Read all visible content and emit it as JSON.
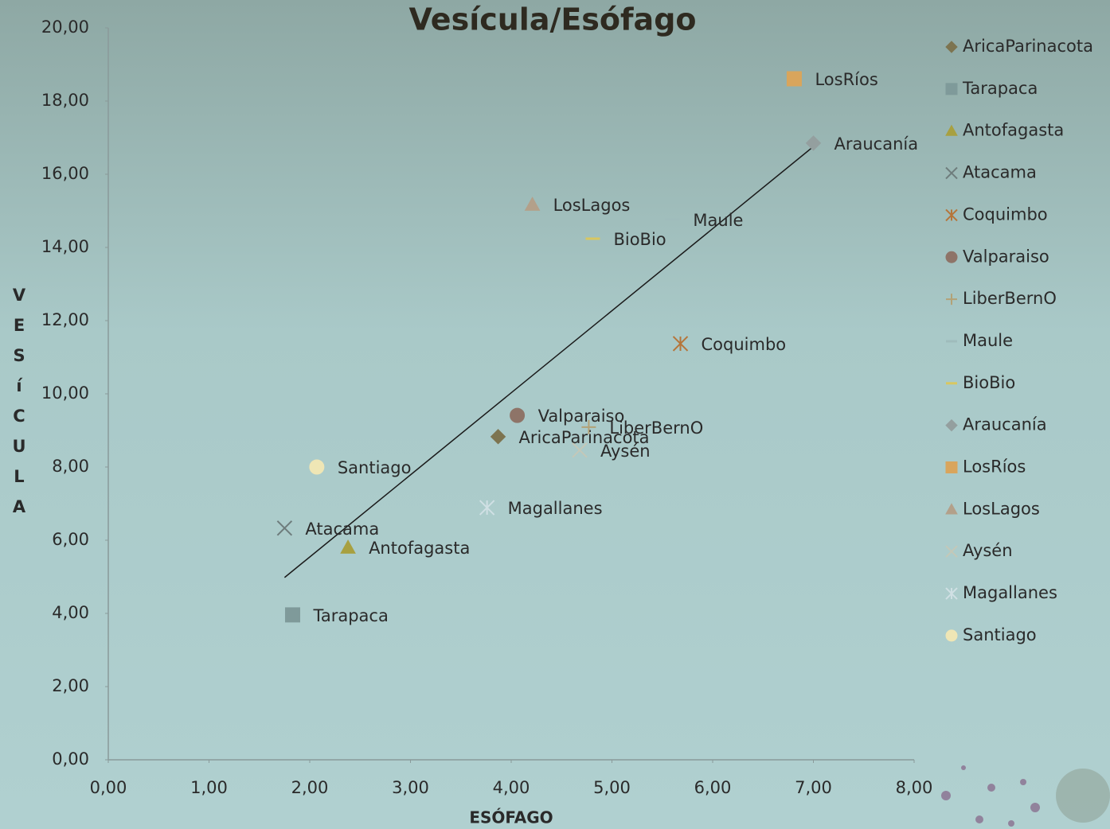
{
  "chart_data": {
    "type": "scatter",
    "title": "Vesícula/Esófago",
    "x_label": "ESÓFAGO",
    "y_label": "VESíCULA",
    "xlim": [
      0,
      8
    ],
    "ylim": [
      0,
      20
    ],
    "xticks": [
      {
        "value": 0,
        "label": "0,00"
      },
      {
        "value": 1,
        "label": "1,00"
      },
      {
        "value": 2,
        "label": "2,00"
      },
      {
        "value": 3,
        "label": "3,00"
      },
      {
        "value": 4,
        "label": "4,00"
      },
      {
        "value": 5,
        "label": "5,00"
      },
      {
        "value": 6,
        "label": "6,00"
      },
      {
        "value": 7,
        "label": "7,00"
      },
      {
        "value": 8,
        "label": "8,00"
      }
    ],
    "yticks": [
      {
        "value": 0,
        "label": "0,00"
      },
      {
        "value": 2,
        "label": "2,00"
      },
      {
        "value": 4,
        "label": "4,00"
      },
      {
        "value": 6,
        "label": "6,00"
      },
      {
        "value": 8,
        "label": "8,00"
      },
      {
        "value": 10,
        "label": "10,00"
      },
      {
        "value": 12,
        "label": "12,00"
      },
      {
        "value": 14,
        "label": "14,00"
      },
      {
        "value": 16,
        "label": "16,00"
      },
      {
        "value": 18,
        "label": "18,00"
      },
      {
        "value": 20,
        "label": "20,00"
      }
    ],
    "trendline": true,
    "legend": "right",
    "series": [
      {
        "name": "AricaParinacota",
        "color": "#7d7450",
        "marker": "diamond",
        "x": [
          3.87
        ],
        "values": [
          8.83
        ]
      },
      {
        "name": "Tarapaca",
        "color": "#7f9a9a",
        "marker": "square",
        "x": [
          1.83
        ],
        "values": [
          3.96
        ]
      },
      {
        "name": "Antofagasta",
        "color": "#a8a040",
        "marker": "triangle",
        "x": [
          2.38
        ],
        "values": [
          5.8
        ]
      },
      {
        "name": "Atacama",
        "color": "#6e7c7c",
        "marker": "x",
        "x": [
          1.75
        ],
        "values": [
          6.33
        ]
      },
      {
        "name": "Coquimbo",
        "color": "#b5753a",
        "marker": "asterisk",
        "x": [
          5.68
        ],
        "values": [
          11.37
        ]
      },
      {
        "name": "Valparaiso",
        "color": "#8e7468",
        "marker": "circle",
        "x": [
          4.06
        ],
        "values": [
          9.41
        ]
      },
      {
        "name": "LiberBernO",
        "color": "#b3a277",
        "marker": "plus",
        "x": [
          4.77
        ],
        "values": [
          9.09
        ]
      },
      {
        "name": "Maule",
        "color": "#9fbcbc",
        "marker": "dash",
        "x": [
          5.6
        ],
        "values": [
          14.76
        ]
      },
      {
        "name": "BioBio",
        "color": "#d9c760",
        "marker": "dash",
        "x": [
          4.81
        ],
        "values": [
          14.24
        ]
      },
      {
        "name": "Araucanía",
        "color": "#949f9f",
        "marker": "diamond",
        "x": [
          7.0
        ],
        "values": [
          16.85
        ]
      },
      {
        "name": "LosRíos",
        "color": "#d9a55c",
        "marker": "square",
        "x": [
          6.81
        ],
        "values": [
          18.61
        ]
      },
      {
        "name": "LosLagos",
        "color": "#b3a08a",
        "marker": "triangle",
        "x": [
          4.21
        ],
        "values": [
          15.17
        ]
      },
      {
        "name": "Aysén",
        "color": "#c4c8b8",
        "marker": "x",
        "x": [
          4.68
        ],
        "values": [
          8.46
        ]
      },
      {
        "name": "Magallanes",
        "color": "#d0e0e4",
        "marker": "asterisk",
        "x": [
          3.76
        ],
        "values": [
          6.89
        ]
      },
      {
        "name": "Santiago",
        "color": "#efe6b5",
        "marker": "circle",
        "x": [
          2.07
        ],
        "values": [
          8.0
        ]
      }
    ]
  }
}
